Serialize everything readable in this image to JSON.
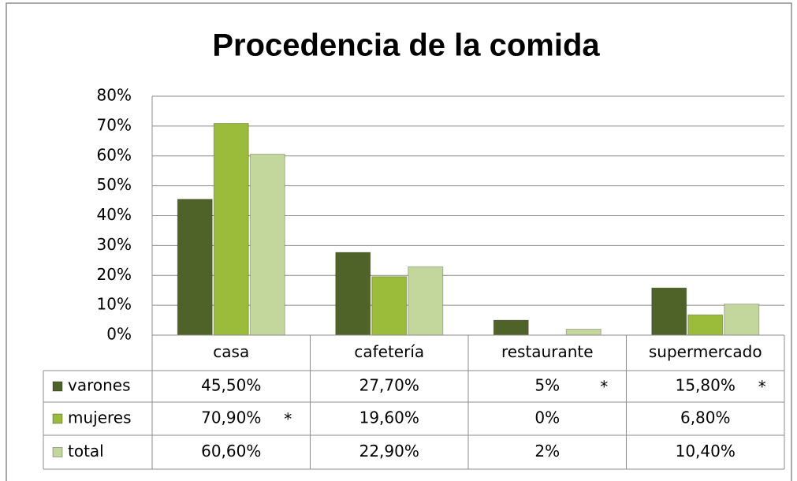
{
  "chart_data": {
    "type": "bar",
    "title": "Procedencia de la comida",
    "categories": [
      "casa",
      "cafetería",
      "restaurante",
      "supermercado"
    ],
    "series": [
      {
        "name": "varones",
        "color": "#4f6228",
        "values": [
          45.5,
          27.7,
          5,
          15.8
        ],
        "value_labels": [
          "45,50%",
          "27,70%",
          "5%",
          "15,80%"
        ],
        "notes": [
          null,
          null,
          "*",
          "*"
        ]
      },
      {
        "name": "mujeres",
        "color": "#9bbb3a",
        "values": [
          70.9,
          19.6,
          0,
          6.8
        ],
        "value_labels": [
          "70,90%",
          "19,60%",
          "0%",
          "6,80%"
        ],
        "notes": [
          "*",
          null,
          null,
          null
        ]
      },
      {
        "name": "total",
        "color": "#c3d69b",
        "values": [
          60.6,
          22.9,
          2,
          10.4
        ],
        "value_labels": [
          "60,60%",
          "22,90%",
          "2%",
          "10,40%"
        ],
        "notes": [
          null,
          null,
          null,
          null
        ]
      }
    ],
    "ylim": [
      0,
      80
    ],
    "yticks": [
      {
        "value": 0,
        "label": "0%"
      },
      {
        "value": 10,
        "label": "10%"
      },
      {
        "value": 20,
        "label": "20%"
      },
      {
        "value": 30,
        "label": "30%"
      },
      {
        "value": 40,
        "label": "40%"
      },
      {
        "value": 50,
        "label": "50%"
      },
      {
        "value": 60,
        "label": "60%"
      },
      {
        "value": 70,
        "label": "70%"
      },
      {
        "value": 80,
        "label": "80%"
      }
    ],
    "grid": true
  }
}
